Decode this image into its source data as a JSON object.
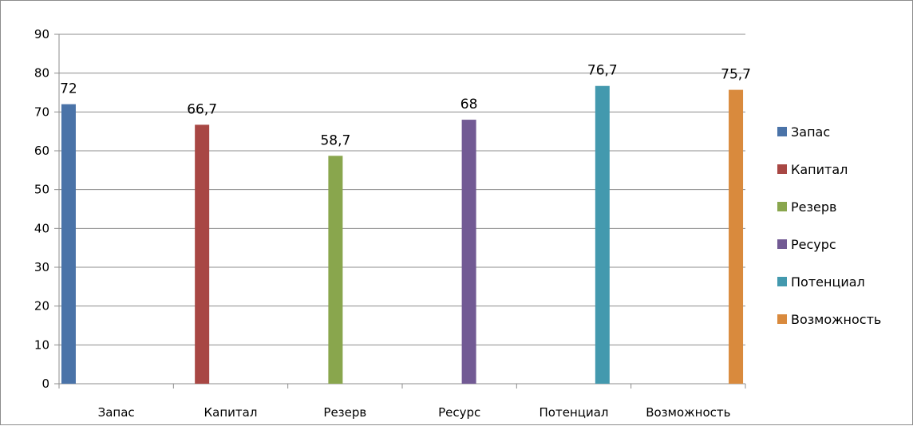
{
  "chart_data": {
    "type": "bar",
    "categories": [
      "Запас",
      "Капитал",
      "Резерв",
      "Ресурс",
      "Потенциал",
      "Возможность"
    ],
    "values": [
      72,
      66.7,
      58.7,
      68,
      76.7,
      75.7
    ],
    "value_labels": [
      "72",
      "66,7",
      "58,7",
      "68",
      "76,7",
      "75,7"
    ],
    "yticks": [
      "0",
      "10",
      "20",
      "30",
      "40",
      "50",
      "60",
      "70",
      "80",
      "90"
    ],
    "ylim": [
      0,
      90
    ],
    "grid": true,
    "legend": "right",
    "series": [
      {
        "name": "Запас",
        "color": "#4a73a8"
      },
      {
        "name": "Капитал",
        "color": "#a84744"
      },
      {
        "name": "Резерв",
        "color": "#89a64d"
      },
      {
        "name": "Ресурс",
        "color": "#725a94"
      },
      {
        "name": "Потенциал",
        "color": "#4399ae"
      },
      {
        "name": "Возможность",
        "color": "#d98a3d"
      }
    ]
  }
}
